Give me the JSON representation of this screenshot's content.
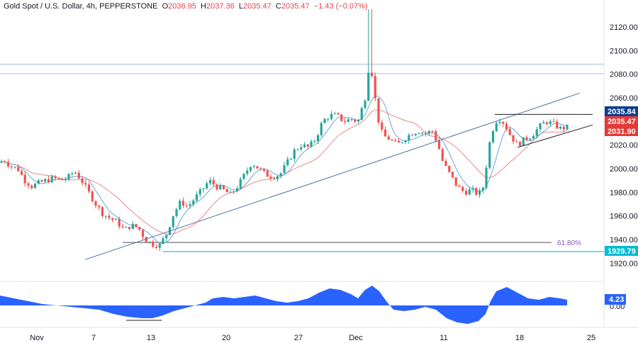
{
  "header": {
    "symbol": "Gold Spot / U.S. Dollar, 4h, PEPPERSTONE",
    "open_label": "O",
    "open": "2036.95",
    "high_label": "H",
    "high": "2037.36",
    "low_label": "L",
    "low": "2035.47",
    "close_label": "C",
    "close": "2035.47",
    "change": "−1.43 (−0.07%)"
  },
  "colors": {
    "up": "#26a69a",
    "down": "#ef5350",
    "sma_fast": "#5b9bd5",
    "sma_slow": "#e57373",
    "trend": "#4a6fa5",
    "resistance": "#a8c1e0",
    "osc": "#2962ff",
    "badge_blue": "#0c3d91",
    "badge_red": "#e53935",
    "badge_cyan": "#00bcd4"
  },
  "chart_data": {
    "type": "candlestick",
    "y_axis": {
      "ticks": [
        2120.0,
        2100.0,
        2080.0,
        2060.0,
        2040.0,
        2020.0,
        2000.0,
        1980.0,
        1960.0,
        1940.0,
        1920.0
      ],
      "range": [
        1910,
        2132
      ]
    },
    "x_axis": {
      "ticks": [
        "Nov",
        "7",
        "13",
        "20",
        "27",
        "Dec",
        "11",
        "18",
        "25"
      ]
    },
    "levels": {
      "resistance_1": 2088.5,
      "resistance_2": 2080.5,
      "fib_618": 1937.5,
      "fib_618_label": "61.80%",
      "support": 1929.79
    },
    "price_badges": [
      {
        "value": "2035.84",
        "kind": "blue"
      },
      {
        "value": "2035.47",
        "kind": "red"
      },
      {
        "value": "2031.90",
        "kind": "red"
      },
      {
        "value": "1929.79",
        "kind": "cyan"
      }
    ],
    "candles_anchor_path": [
      [
        0,
        2005
      ],
      [
        5,
        2008
      ],
      [
        15,
        2002
      ],
      [
        25,
        2000
      ],
      [
        35,
        1990
      ],
      [
        45,
        1985
      ],
      [
        55,
        1988
      ],
      [
        65,
        1990
      ],
      [
        75,
        1992
      ],
      [
        85,
        1990
      ],
      [
        95,
        1992
      ],
      [
        105,
        1998
      ],
      [
        115,
        1990
      ],
      [
        125,
        1980
      ],
      [
        135,
        1970
      ],
      [
        145,
        1962
      ],
      [
        155,
        1958
      ],
      [
        165,
        1955
      ],
      [
        175,
        1948
      ],
      [
        185,
        1952
      ],
      [
        195,
        1950
      ],
      [
        205,
        1940
      ],
      [
        215,
        1936
      ],
      [
        225,
        1935
      ],
      [
        235,
        1945
      ],
      [
        245,
        1962
      ],
      [
        255,
        1972
      ],
      [
        265,
        1968
      ],
      [
        275,
        1975
      ],
      [
        285,
        1982
      ],
      [
        295,
        1990
      ],
      [
        305,
        1985
      ],
      [
        315,
        1982
      ],
      [
        325,
        1978
      ],
      [
        335,
        1985
      ],
      [
        345,
        1995
      ],
      [
        355,
        2005
      ],
      [
        365,
        2000
      ],
      [
        375,
        1995
      ],
      [
        385,
        1993
      ],
      [
        395,
        1995
      ],
      [
        405,
        2005
      ],
      [
        415,
        2015
      ],
      [
        425,
        2020
      ],
      [
        435,
        2018
      ],
      [
        445,
        2025
      ],
      [
        455,
        2040
      ],
      [
        465,
        2045
      ],
      [
        475,
        2045
      ],
      [
        485,
        2040
      ],
      [
        495,
        2042
      ],
      [
        505,
        2040
      ],
      [
        515,
        2060
      ],
      [
        520,
        2085
      ],
      [
        525,
        2080
      ],
      [
        532,
        2045
      ],
      [
        540,
        2028
      ],
      [
        550,
        2025
      ],
      [
        560,
        2020
      ],
      [
        570,
        2025
      ],
      [
        580,
        2030
      ],
      [
        590,
        2032
      ],
      [
        600,
        2030
      ],
      [
        610,
        2032
      ],
      [
        618,
        2020
      ],
      [
        625,
        2005
      ],
      [
        635,
        1995
      ],
      [
        645,
        1985
      ],
      [
        655,
        1980
      ],
      [
        665,
        1982
      ],
      [
        675,
        1978
      ],
      [
        682,
        1985
      ],
      [
        690,
        2020
      ],
      [
        698,
        2040
      ],
      [
        705,
        2042
      ],
      [
        712,
        2038
      ],
      [
        720,
        2028
      ],
      [
        730,
        2020
      ],
      [
        740,
        2025
      ],
      [
        750,
        2028
      ],
      [
        760,
        2035
      ],
      [
        770,
        2040
      ],
      [
        780,
        2038
      ],
      [
        790,
        2034
      ],
      [
        800,
        2035
      ]
    ],
    "trendline": {
      "x1": 120,
      "y1": 1923,
      "x2": 818,
      "y2": 2064
    },
    "channel_top": {
      "x1": 698,
      "y1": 2046,
      "x2": 836,
      "y2": 2046
    },
    "channel_bottom": {
      "x1": 730,
      "y1": 2018,
      "x2": 836,
      "y2": 2037
    },
    "oscillator": {
      "value": "4.23",
      "zero_label": "0.00",
      "points": [
        [
          0,
          14
        ],
        [
          20,
          10
        ],
        [
          40,
          6
        ],
        [
          60,
          2
        ],
        [
          80,
          0
        ],
        [
          100,
          -2
        ],
        [
          120,
          -4
        ],
        [
          140,
          -6
        ],
        [
          160,
          -12
        ],
        [
          180,
          -16
        ],
        [
          200,
          -18
        ],
        [
          215,
          -18
        ],
        [
          230,
          -14
        ],
        [
          245,
          -8
        ],
        [
          260,
          -4
        ],
        [
          275,
          0
        ],
        [
          290,
          4
        ],
        [
          300,
          10
        ],
        [
          315,
          12
        ],
        [
          330,
          10
        ],
        [
          345,
          12
        ],
        [
          360,
          14
        ],
        [
          375,
          10
        ],
        [
          390,
          6
        ],
        [
          405,
          4
        ],
        [
          420,
          6
        ],
        [
          435,
          10
        ],
        [
          450,
          18
        ],
        [
          465,
          24
        ],
        [
          480,
          22
        ],
        [
          495,
          16
        ],
        [
          505,
          10
        ],
        [
          515,
          22
        ],
        [
          525,
          28
        ],
        [
          535,
          20
        ],
        [
          545,
          6
        ],
        [
          555,
          -6
        ],
        [
          570,
          -8
        ],
        [
          585,
          -6
        ],
        [
          600,
          -2
        ],
        [
          615,
          -6
        ],
        [
          630,
          -18
        ],
        [
          645,
          -24
        ],
        [
          660,
          -26
        ],
        [
          675,
          -22
        ],
        [
          685,
          -12
        ],
        [
          692,
          6
        ],
        [
          700,
          20
        ],
        [
          715,
          26
        ],
        [
          730,
          18
        ],
        [
          745,
          10
        ],
        [
          760,
          8
        ],
        [
          775,
          12
        ],
        [
          790,
          10
        ],
        [
          800,
          8
        ]
      ]
    }
  }
}
